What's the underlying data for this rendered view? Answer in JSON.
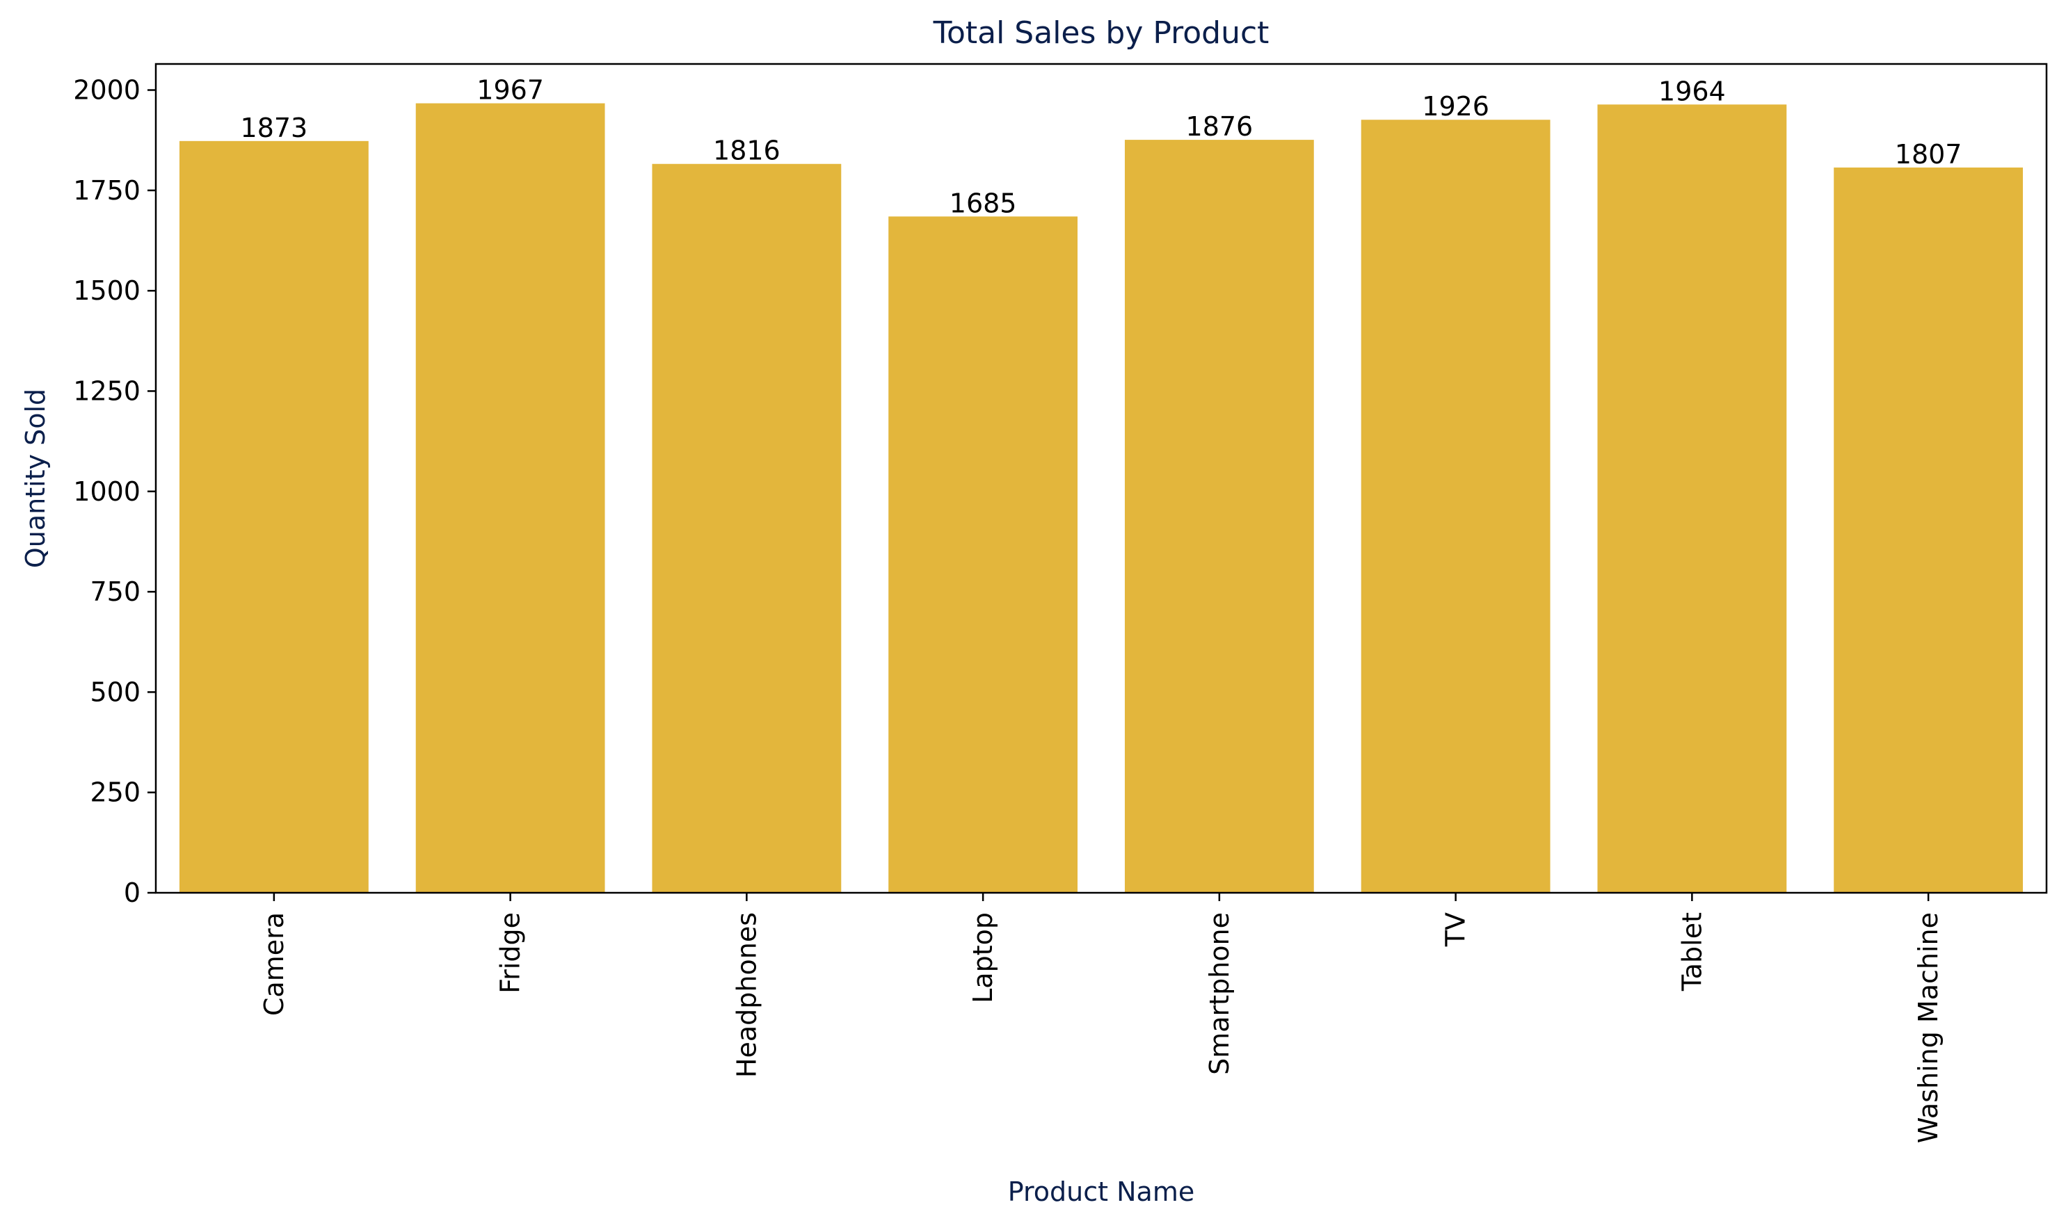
{
  "chart_data": {
    "type": "bar",
    "title": "Total Sales by Product",
    "xlabel": "Product Name",
    "ylabel": "Quantity Sold",
    "categories": [
      "Camera",
      "Fridge",
      "Headphones",
      "Laptop",
      "Smartphone",
      "TV",
      "Tablet",
      "Washing Machine"
    ],
    "values": [
      1873,
      1967,
      1816,
      1685,
      1876,
      1926,
      1964,
      1807
    ],
    "data_labels": [
      "1873",
      "1967",
      "1816",
      "1685",
      "1876",
      "1926",
      "1964",
      "1807"
    ],
    "yticks": [
      0,
      250,
      500,
      750,
      1000,
      1250,
      1500,
      1750,
      2000
    ],
    "ylim": [
      0,
      2065
    ],
    "grid": false,
    "legend": "none",
    "colors": {
      "bar": "#E3B63C",
      "title": "#0B1F4B",
      "axis_label": "#0B1F4B",
      "tick_label": "#000000",
      "axis": "#000000"
    }
  }
}
